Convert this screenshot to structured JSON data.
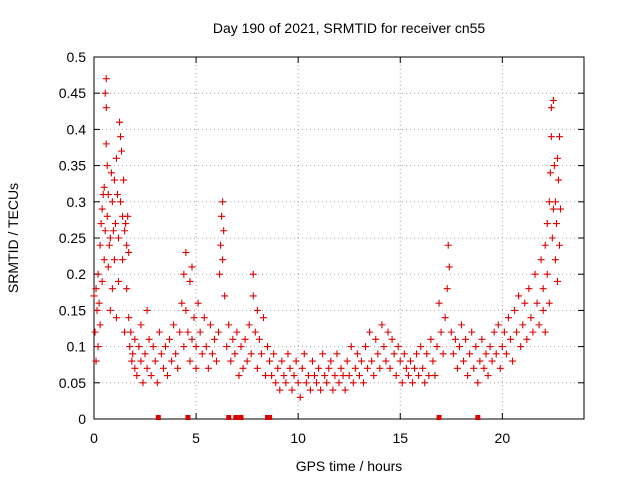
{
  "chart_data": {
    "type": "scatter",
    "title": "Day 190 of 2021, SRMTID for receiver cn55",
    "xlabel": "GPS time / hours",
    "ylabel": "SRMTID / TECUs",
    "xlim": [
      0,
      24
    ],
    "ylim": [
      0,
      0.5
    ],
    "xticks": [
      0,
      5,
      10,
      15,
      20
    ],
    "xtick_labels": [
      "0",
      "5",
      "10",
      "15",
      "20"
    ],
    "yticks": [
      0,
      0.05,
      0.1,
      0.15,
      0.2,
      0.25,
      0.3,
      0.35,
      0.4,
      0.45,
      0.5
    ],
    "ytick_labels": [
      "0",
      "0.05",
      "0.1",
      "0.15",
      "0.2",
      "0.25",
      "0.3",
      "0.35",
      "0.4",
      "0.45",
      "0.5"
    ],
    "grid": true,
    "marker": "+",
    "color": "#dd0000",
    "zero_markers_x": [
      3.15,
      4.6,
      6.6,
      6.95,
      7.2,
      8.5,
      8.6,
      16.9,
      18.8
    ],
    "series": [
      {
        "name": "SRMTID",
        "points": [
          [
            0.0,
            0.17
          ],
          [
            0.05,
            0.12
          ],
          [
            0.1,
            0.08
          ],
          [
            0.1,
            0.18
          ],
          [
            0.15,
            0.15
          ],
          [
            0.2,
            0.1
          ],
          [
            0.2,
            0.2
          ],
          [
            0.25,
            0.16
          ],
          [
            0.3,
            0.24
          ],
          [
            0.3,
            0.13
          ],
          [
            0.35,
            0.27
          ],
          [
            0.4,
            0.29
          ],
          [
            0.4,
            0.19
          ],
          [
            0.45,
            0.31
          ],
          [
            0.5,
            0.22
          ],
          [
            0.5,
            0.32
          ],
          [
            0.55,
            0.26
          ],
          [
            0.55,
            0.45
          ],
          [
            0.6,
            0.47
          ],
          [
            0.6,
            0.43
          ],
          [
            0.6,
            0.38
          ],
          [
            0.65,
            0.35
          ],
          [
            0.65,
            0.28
          ],
          [
            0.7,
            0.31
          ],
          [
            0.7,
            0.21
          ],
          [
            0.75,
            0.24
          ],
          [
            0.8,
            0.15
          ],
          [
            0.8,
            0.25
          ],
          [
            0.85,
            0.34
          ],
          [
            0.9,
            0.3
          ],
          [
            0.9,
            0.18
          ],
          [
            0.95,
            0.26
          ],
          [
            1.0,
            0.22
          ],
          [
            1.0,
            0.33
          ],
          [
            1.05,
            0.27
          ],
          [
            1.1,
            0.36
          ],
          [
            1.1,
            0.14
          ],
          [
            1.15,
            0.31
          ],
          [
            1.2,
            0.25
          ],
          [
            1.2,
            0.19
          ],
          [
            1.25,
            0.41
          ],
          [
            1.3,
            0.39
          ],
          [
            1.3,
            0.3
          ],
          [
            1.35,
            0.37
          ],
          [
            1.4,
            0.28
          ],
          [
            1.4,
            0.22
          ],
          [
            1.45,
            0.33
          ],
          [
            1.5,
            0.26
          ],
          [
            1.5,
            0.12
          ],
          [
            1.55,
            0.27
          ],
          [
            1.6,
            0.24
          ],
          [
            1.6,
            0.18
          ],
          [
            1.65,
            0.28
          ],
          [
            1.7,
            0.23
          ],
          [
            1.7,
            0.14
          ],
          [
            1.75,
            0.1
          ],
          [
            1.8,
            0.12
          ],
          [
            1.85,
            0.08
          ],
          [
            1.9,
            0.09
          ],
          [
            2.0,
            0.07
          ],
          [
            2.0,
            0.11
          ],
          [
            2.1,
            0.06
          ],
          [
            2.2,
            0.1
          ],
          [
            2.3,
            0.08
          ],
          [
            2.3,
            0.13
          ],
          [
            2.4,
            0.05
          ],
          [
            2.5,
            0.09
          ],
          [
            2.6,
            0.15
          ],
          [
            2.6,
            0.07
          ],
          [
            2.7,
            0.11
          ],
          [
            2.8,
            0.06
          ],
          [
            2.9,
            0.1
          ],
          [
            3.0,
            0.08
          ],
          [
            3.1,
            0.05
          ],
          [
            3.2,
            0.12
          ],
          [
            3.3,
            0.09
          ],
          [
            3.4,
            0.07
          ],
          [
            3.5,
            0.1
          ],
          [
            3.6,
            0.06
          ],
          [
            3.7,
            0.11
          ],
          [
            3.8,
            0.08
          ],
          [
            3.9,
            0.13
          ],
          [
            4.0,
            0.09
          ],
          [
            4.1,
            0.07
          ],
          [
            4.2,
            0.12
          ],
          [
            4.3,
            0.16
          ],
          [
            4.4,
            0.1
          ],
          [
            4.4,
            0.2
          ],
          [
            4.5,
            0.15
          ],
          [
            4.5,
            0.23
          ],
          [
            4.6,
            0.12
          ],
          [
            4.7,
            0.19
          ],
          [
            4.7,
            0.08
          ],
          [
            4.8,
            0.21
          ],
          [
            4.8,
            0.11
          ],
          [
            4.9,
            0.14
          ],
          [
            5.0,
            0.1
          ],
          [
            5.0,
            0.07
          ],
          [
            5.1,
            0.16
          ],
          [
            5.2,
            0.12
          ],
          [
            5.3,
            0.09
          ],
          [
            5.4,
            0.14
          ],
          [
            5.5,
            0.1
          ],
          [
            5.6,
            0.07
          ],
          [
            5.7,
            0.13
          ],
          [
            5.8,
            0.09
          ],
          [
            5.9,
            0.11
          ],
          [
            6.0,
            0.08
          ],
          [
            6.1,
            0.12
          ],
          [
            6.15,
            0.2
          ],
          [
            6.2,
            0.24
          ],
          [
            6.25,
            0.28
          ],
          [
            6.3,
            0.22
          ],
          [
            6.3,
            0.3
          ],
          [
            6.35,
            0.26
          ],
          [
            6.4,
            0.17
          ],
          [
            6.5,
            0.1
          ],
          [
            6.6,
            0.13
          ],
          [
            6.7,
            0.08
          ],
          [
            6.8,
            0.11
          ],
          [
            6.9,
            0.09
          ],
          [
            7.0,
            0.12
          ],
          [
            7.1,
            0.06
          ],
          [
            7.2,
            0.1
          ],
          [
            7.3,
            0.07
          ],
          [
            7.4,
            0.11
          ],
          [
            7.5,
            0.08
          ],
          [
            7.6,
            0.13
          ],
          [
            7.7,
            0.09
          ],
          [
            7.8,
            0.17
          ],
          [
            7.8,
            0.2
          ],
          [
            7.9,
            0.12
          ],
          [
            8.0,
            0.15
          ],
          [
            8.0,
            0.07
          ],
          [
            8.1,
            0.11
          ],
          [
            8.2,
            0.09
          ],
          [
            8.3,
            0.14
          ],
          [
            8.4,
            0.06
          ],
          [
            8.5,
            0.1
          ],
          [
            8.6,
            0.08
          ],
          [
            8.7,
            0.06
          ],
          [
            8.8,
            0.09
          ],
          [
            8.9,
            0.05
          ],
          [
            9.0,
            0.07
          ],
          [
            9.1,
            0.04
          ],
          [
            9.2,
            0.08
          ],
          [
            9.3,
            0.06
          ],
          [
            9.4,
            0.05
          ],
          [
            9.5,
            0.09
          ],
          [
            9.6,
            0.07
          ],
          [
            9.7,
            0.04
          ],
          [
            9.8,
            0.06
          ],
          [
            9.9,
            0.08
          ],
          [
            10.0,
            0.05
          ],
          [
            10.1,
            0.03
          ],
          [
            10.2,
            0.07
          ],
          [
            10.3,
            0.09
          ],
          [
            10.4,
            0.05
          ],
          [
            10.5,
            0.06
          ],
          [
            10.6,
            0.04
          ],
          [
            10.7,
            0.08
          ],
          [
            10.8,
            0.06
          ],
          [
            10.9,
            0.05
          ],
          [
            11.0,
            0.07
          ],
          [
            11.1,
            0.04
          ],
          [
            11.2,
            0.09
          ],
          [
            11.3,
            0.06
          ],
          [
            11.4,
            0.05
          ],
          [
            11.5,
            0.07
          ],
          [
            11.6,
            0.08
          ],
          [
            11.7,
            0.04
          ],
          [
            11.8,
            0.06
          ],
          [
            11.9,
            0.09
          ],
          [
            12.0,
            0.05
          ],
          [
            12.1,
            0.07
          ],
          [
            12.2,
            0.06
          ],
          [
            12.3,
            0.04
          ],
          [
            12.4,
            0.08
          ],
          [
            12.5,
            0.06
          ],
          [
            12.6,
            0.1
          ],
          [
            12.7,
            0.05
          ],
          [
            12.8,
            0.07
          ],
          [
            12.9,
            0.09
          ],
          [
            13.0,
            0.06
          ],
          [
            13.1,
            0.08
          ],
          [
            13.2,
            0.05
          ],
          [
            13.3,
            0.1
          ],
          [
            13.4,
            0.07
          ],
          [
            13.5,
            0.12
          ],
          [
            13.6,
            0.08
          ],
          [
            13.7,
            0.06
          ],
          [
            13.8,
            0.11
          ],
          [
            13.9,
            0.09
          ],
          [
            14.0,
            0.07
          ],
          [
            14.1,
            0.13
          ],
          [
            14.2,
            0.1
          ],
          [
            14.3,
            0.08
          ],
          [
            14.4,
            0.12
          ],
          [
            14.5,
            0.07
          ],
          [
            14.6,
            0.11
          ],
          [
            14.7,
            0.09
          ],
          [
            14.8,
            0.06
          ],
          [
            14.9,
            0.1
          ],
          [
            15.0,
            0.08
          ],
          [
            15.1,
            0.05
          ],
          [
            15.2,
            0.09
          ],
          [
            15.3,
            0.07
          ],
          [
            15.4,
            0.06
          ],
          [
            15.5,
            0.08
          ],
          [
            15.6,
            0.05
          ],
          [
            15.7,
            0.07
          ],
          [
            15.8,
            0.09
          ],
          [
            15.9,
            0.06
          ],
          [
            16.0,
            0.1
          ],
          [
            16.1,
            0.07
          ],
          [
            16.2,
            0.05
          ],
          [
            16.3,
            0.09
          ],
          [
            16.4,
            0.06
          ],
          [
            16.5,
            0.11
          ],
          [
            16.6,
            0.08
          ],
          [
            16.7,
            0.06
          ],
          [
            16.8,
            0.1
          ],
          [
            16.9,
            0.16
          ],
          [
            17.0,
            0.12
          ],
          [
            17.1,
            0.09
          ],
          [
            17.2,
            0.14
          ],
          [
            17.3,
            0.18
          ],
          [
            17.35,
            0.24
          ],
          [
            17.4,
            0.21
          ],
          [
            17.5,
            0.12
          ],
          [
            17.6,
            0.09
          ],
          [
            17.7,
            0.11
          ],
          [
            17.8,
            0.07
          ],
          [
            17.9,
            0.1
          ],
          [
            18.0,
            0.13
          ],
          [
            18.1,
            0.08
          ],
          [
            18.2,
            0.11
          ],
          [
            18.3,
            0.06
          ],
          [
            18.4,
            0.09
          ],
          [
            18.5,
            0.12
          ],
          [
            18.6,
            0.07
          ],
          [
            18.7,
            0.1
          ],
          [
            18.8,
            0.05
          ],
          [
            18.9,
            0.08
          ],
          [
            19.0,
            0.11
          ],
          [
            19.1,
            0.07
          ],
          [
            19.2,
            0.09
          ],
          [
            19.3,
            0.06
          ],
          [
            19.4,
            0.1
          ],
          [
            19.5,
            0.08
          ],
          [
            19.6,
            0.12
          ],
          [
            19.7,
            0.09
          ],
          [
            19.8,
            0.13
          ],
          [
            19.9,
            0.07
          ],
          [
            20.0,
            0.1
          ],
          [
            20.1,
            0.12
          ],
          [
            20.2,
            0.09
          ],
          [
            20.3,
            0.14
          ],
          [
            20.4,
            0.11
          ],
          [
            20.5,
            0.08
          ],
          [
            20.6,
            0.15
          ],
          [
            20.7,
            0.12
          ],
          [
            20.8,
            0.17
          ],
          [
            20.9,
            0.1
          ],
          [
            21.0,
            0.13
          ],
          [
            21.1,
            0.16
          ],
          [
            21.2,
            0.11
          ],
          [
            21.3,
            0.18
          ],
          [
            21.4,
            0.14
          ],
          [
            21.5,
            0.12
          ],
          [
            21.6,
            0.2
          ],
          [
            21.7,
            0.16
          ],
          [
            21.8,
            0.13
          ],
          [
            21.9,
            0.22
          ],
          [
            22.0,
            0.18
          ],
          [
            22.0,
            0.15
          ],
          [
            22.1,
            0.24
          ],
          [
            22.1,
            0.12
          ],
          [
            22.2,
            0.2
          ],
          [
            22.2,
            0.27
          ],
          [
            22.3,
            0.16
          ],
          [
            22.3,
            0.3
          ],
          [
            22.35,
            0.34
          ],
          [
            22.4,
            0.43
          ],
          [
            22.4,
            0.39
          ],
          [
            22.45,
            0.25
          ],
          [
            22.5,
            0.44
          ],
          [
            22.5,
            0.29
          ],
          [
            22.55,
            0.35
          ],
          [
            22.6,
            0.3
          ],
          [
            22.6,
            0.22
          ],
          [
            22.65,
            0.27
          ],
          [
            22.7,
            0.36
          ],
          [
            22.7,
            0.19
          ],
          [
            22.75,
            0.33
          ],
          [
            22.8,
            0.39
          ],
          [
            22.8,
            0.24
          ],
          [
            22.85,
            0.29
          ]
        ]
      }
    ]
  }
}
